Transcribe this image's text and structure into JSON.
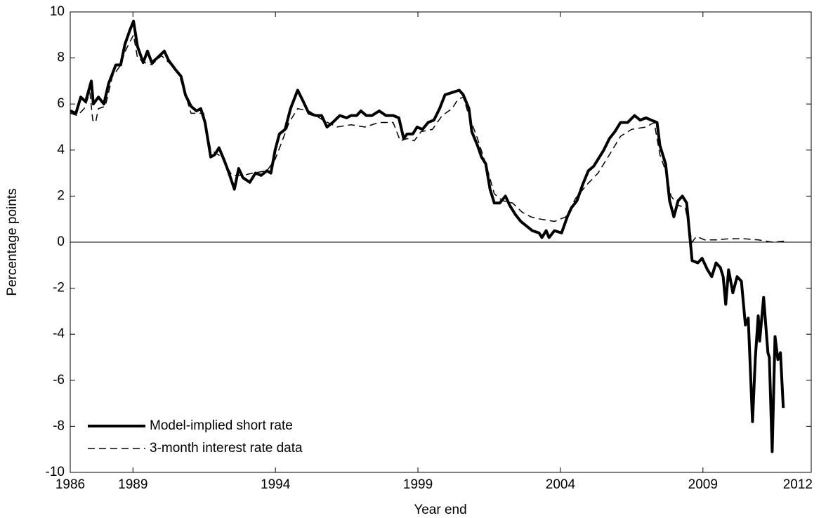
{
  "chart_data": {
    "type": "line",
    "x_label": "Year end",
    "y_label": "Percentage points",
    "xlim": [
      1986.8,
      2012.8
    ],
    "xticks": [
      {
        "value": 1986.8,
        "label": "1986"
      },
      1989,
      1994,
      1999,
      2004,
      2009,
      {
        "value": 2012.8,
        "label": "2012"
      }
    ],
    "ylim": [
      -10,
      10
    ],
    "yticks": [
      -10,
      -8,
      -6,
      -4,
      -2,
      0,
      2,
      4,
      6,
      8,
      10
    ],
    "zero_line": true,
    "grid": false,
    "legend": "lower left",
    "series": [
      {
        "name": "Model-implied short rate",
        "color": "#000000",
        "dash": "solid",
        "x": [
          1986.8,
          1987.0,
          1987.17,
          1987.34,
          1987.54,
          1987.61,
          1987.79,
          1987.98,
          1988.15,
          1988.4,
          1988.57,
          1988.72,
          1988.89,
          1989.02,
          1989.16,
          1989.36,
          1989.51,
          1989.66,
          1989.85,
          1990.1,
          1990.25,
          1990.49,
          1990.69,
          1990.84,
          1991.04,
          1991.23,
          1991.38,
          1991.53,
          1991.73,
          1991.87,
          1992.02,
          1992.22,
          1992.37,
          1992.56,
          1992.71,
          1992.86,
          1993.1,
          1993.3,
          1993.5,
          1993.7,
          1993.84,
          1993.99,
          1994.14,
          1994.34,
          1994.53,
          1994.78,
          1994.98,
          1995.17,
          1995.42,
          1995.62,
          1995.81,
          1996.01,
          1996.26,
          1996.5,
          1996.65,
          1996.85,
          1997.0,
          1997.19,
          1997.39,
          1997.64,
          1997.88,
          1998.13,
          1998.33,
          1998.5,
          1998.62,
          1998.82,
          1998.97,
          1999.16,
          1999.36,
          1999.56,
          1999.76,
          1999.95,
          2000.2,
          2000.45,
          2000.59,
          2000.79,
          2000.89,
          2001.09,
          2001.23,
          2001.38,
          2001.53,
          2001.68,
          2001.87,
          2002.07,
          2002.22,
          2002.42,
          2002.61,
          2002.81,
          2003.01,
          2003.25,
          2003.35,
          2003.5,
          2003.6,
          2003.79,
          2004.04,
          2004.24,
          2004.39,
          2004.58,
          2004.78,
          2004.98,
          2005.17,
          2005.32,
          2005.52,
          2005.72,
          2005.91,
          2006.11,
          2006.36,
          2006.6,
          2006.8,
          2007.0,
          2007.19,
          2007.39,
          2007.49,
          2007.69,
          2007.83,
          2007.98,
          2008.13,
          2008.28,
          2008.43,
          2008.62,
          2008.82,
          2008.97,
          2009.16,
          2009.31,
          2009.46,
          2009.61,
          2009.71,
          2009.8,
          2009.9,
          2010.05,
          2010.2,
          2010.35,
          2010.49,
          2010.59,
          2010.74,
          2010.84,
          2010.94,
          2010.99,
          2011.13,
          2011.28,
          2011.33,
          2011.43,
          2011.53,
          2011.63,
          2011.72,
          2011.82
        ],
        "values": [
          5.7,
          5.6,
          6.3,
          6.1,
          7.0,
          6.0,
          6.3,
          6.0,
          6.9,
          7.7,
          7.7,
          8.6,
          9.2,
          9.6,
          8.5,
          7.8,
          8.3,
          7.8,
          8.0,
          8.3,
          7.9,
          7.5,
          7.2,
          6.4,
          5.9,
          5.7,
          5.8,
          5.2,
          3.7,
          3.8,
          4.1,
          3.5,
          3.0,
          2.3,
          3.2,
          2.8,
          2.6,
          3.0,
          2.9,
          3.1,
          3.0,
          4.0,
          4.7,
          4.9,
          5.8,
          6.6,
          6.1,
          5.6,
          5.5,
          5.5,
          5.0,
          5.2,
          5.5,
          5.4,
          5.5,
          5.5,
          5.7,
          5.5,
          5.5,
          5.7,
          5.5,
          5.5,
          5.4,
          4.5,
          4.7,
          4.7,
          5.0,
          4.9,
          5.2,
          5.3,
          5.8,
          6.4,
          6.5,
          6.6,
          6.4,
          5.8,
          4.8,
          4.2,
          3.7,
          3.4,
          2.3,
          1.7,
          1.7,
          2.0,
          1.6,
          1.2,
          0.9,
          0.7,
          0.5,
          0.4,
          0.2,
          0.5,
          0.2,
          0.5,
          0.4,
          1.1,
          1.5,
          1.8,
          2.5,
          3.1,
          3.3,
          3.6,
          4.0,
          4.5,
          4.8,
          5.2,
          5.2,
          5.5,
          5.3,
          5.4,
          5.3,
          5.2,
          4.2,
          3.4,
          1.8,
          1.1,
          1.8,
          2.0,
          1.7,
          -0.8,
          -0.9,
          -0.7,
          -1.2,
          -1.5,
          -0.9,
          -1.1,
          -1.5,
          -2.7,
          -1.2,
          -2.2,
          -1.5,
          -1.7,
          -3.6,
          -3.3,
          -7.8,
          -5.0,
          -3.2,
          -4.3,
          -2.4,
          -4.8,
          -5.0,
          -9.1,
          -4.1,
          -5.1,
          -4.8,
          -7.2
        ]
      },
      {
        "name": "3-month interest rate data",
        "color": "#000000",
        "dash": "dashed",
        "x": [
          1986.8,
          1987.05,
          1987.29,
          1987.49,
          1987.59,
          1987.69,
          1987.79,
          1988.03,
          1988.28,
          1988.52,
          1988.77,
          1989.02,
          1989.16,
          1989.41,
          1989.66,
          1990.0,
          1990.35,
          1990.64,
          1990.84,
          1991.04,
          1991.48,
          1991.73,
          1992.12,
          1992.47,
          1992.86,
          1993.2,
          1993.7,
          1993.99,
          1994.24,
          1994.48,
          1994.78,
          1995.17,
          1995.67,
          1996.16,
          1996.65,
          1997.14,
          1997.64,
          1998.13,
          1998.38,
          1998.62,
          1998.87,
          1999.11,
          1999.51,
          1999.85,
          2000.2,
          2000.4,
          2000.59,
          2000.79,
          2001.09,
          2001.43,
          2001.68,
          2001.97,
          2002.32,
          2002.66,
          2002.96,
          2003.3,
          2003.79,
          2004.19,
          2004.53,
          2004.93,
          2005.32,
          2005.72,
          2006.11,
          2006.5,
          2007.0,
          2007.29,
          2007.49,
          2007.69,
          2007.88,
          2008.13,
          2008.38,
          2008.62,
          2008.77,
          2009.06,
          2009.46,
          2009.95,
          2010.44,
          2010.94,
          2011.43,
          2011.92
        ],
        "values": [
          5.6,
          5.5,
          5.8,
          6.5,
          5.3,
          5.2,
          5.8,
          5.9,
          7.2,
          7.6,
          8.4,
          9.0,
          8.0,
          7.8,
          7.7,
          8.1,
          7.7,
          7.2,
          6.4,
          5.6,
          5.6,
          4.0,
          3.7,
          2.9,
          2.9,
          3.0,
          3.1,
          3.6,
          4.4,
          5.2,
          5.8,
          5.7,
          5.3,
          5.0,
          5.1,
          5.0,
          5.2,
          5.2,
          4.4,
          4.5,
          4.4,
          4.8,
          4.9,
          5.5,
          5.8,
          6.2,
          6.3,
          5.5,
          4.5,
          3.2,
          2.1,
          1.8,
          1.7,
          1.3,
          1.1,
          1.0,
          0.9,
          1.1,
          1.9,
          2.5,
          3.0,
          3.8,
          4.6,
          4.9,
          5.0,
          5.2,
          3.8,
          3.1,
          2.0,
          1.6,
          1.5,
          0.0,
          0.25,
          0.1,
          0.1,
          0.15,
          0.15,
          0.1,
          0.0,
          0.05
        ]
      }
    ]
  }
}
